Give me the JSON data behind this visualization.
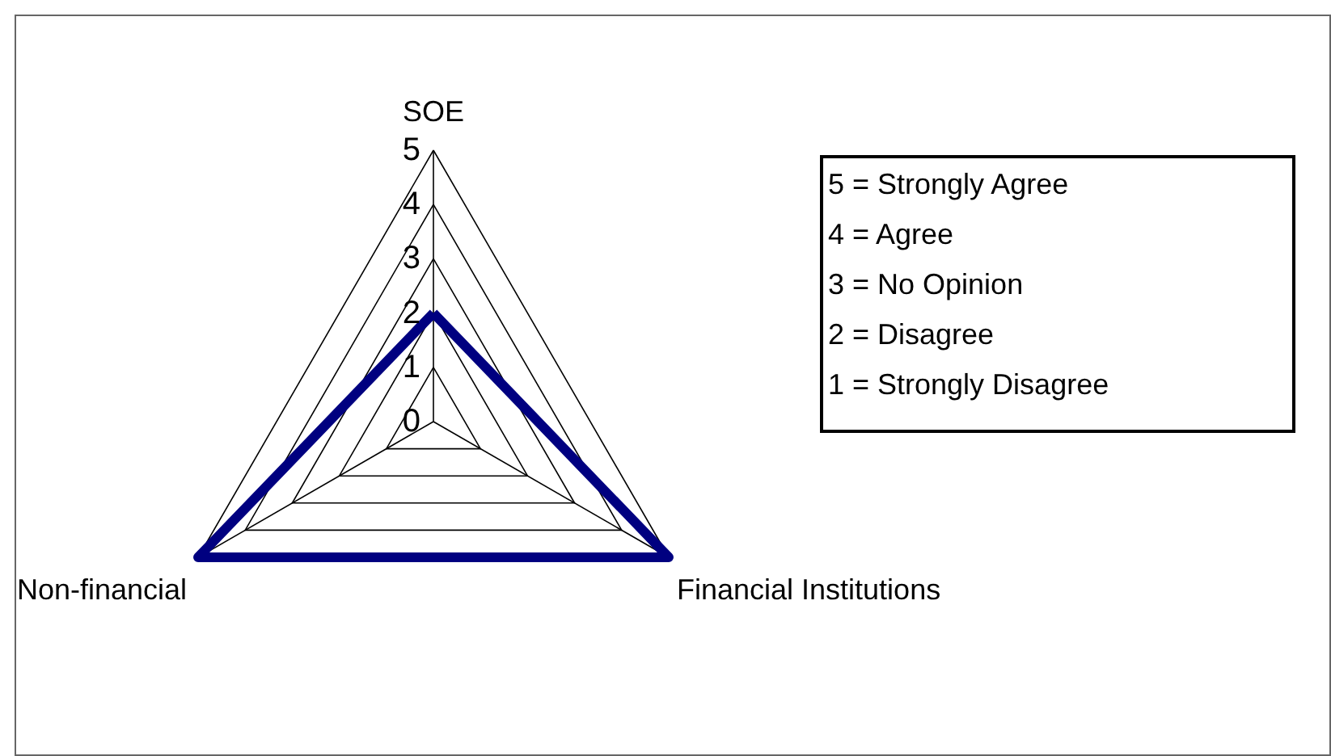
{
  "chart_data": {
    "type": "radar",
    "categories": [
      "SOE",
      "Financial Institutions",
      "Non-financial"
    ],
    "series": [
      {
        "color": "#000080",
        "values": [
          2,
          5,
          5
        ]
      }
    ],
    "ylim": [
      0,
      5
    ],
    "yticks": [
      0,
      1,
      2,
      3,
      4,
      5
    ],
    "grid": true,
    "marker": "none",
    "line_style": "solid",
    "annotations": [
      "5 = Strongly Agree",
      "4 = Agree",
      "3 = No Opinion",
      "2 = Disagree",
      "1 = Strongly Disagree"
    ]
  }
}
